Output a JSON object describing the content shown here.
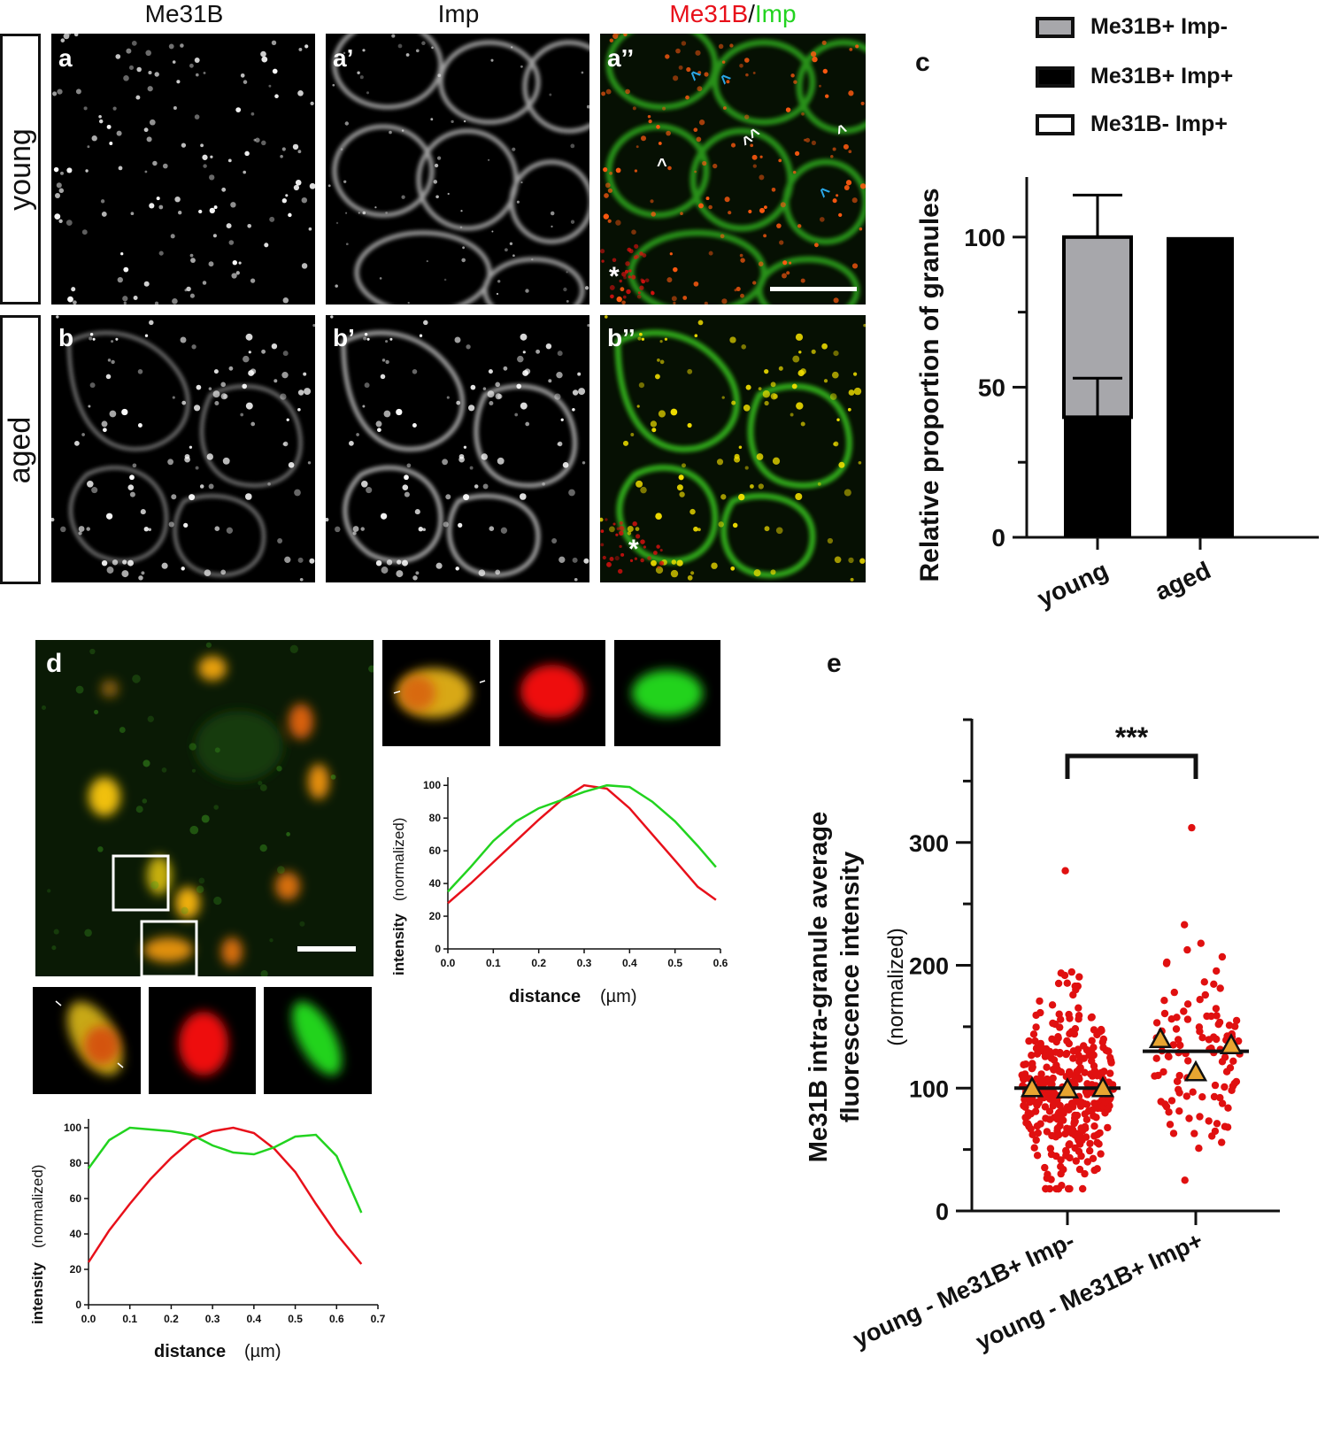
{
  "columns": {
    "me31b": "Me31B",
    "imp": "Imp",
    "merge_red": "Me31B",
    "merge_sep": "/",
    "merge_green": "Imp"
  },
  "rows": {
    "young": "young",
    "aged": "aged"
  },
  "panels": {
    "a": "a",
    "a1": "a’",
    "a2": "a’’",
    "b": "b",
    "b1": "b’",
    "b2": "b’’",
    "c": "c",
    "d": "d",
    "e": "e",
    "asterisk": "*",
    "arrow_glyph": "^"
  },
  "legend": {
    "items": [
      {
        "label": "Me31B+ Imp-",
        "fill": "#a7a7ab"
      },
      {
        "label": "Me31B+ Imp+",
        "fill": "#000000"
      },
      {
        "label": "Me31B- Imp+",
        "fill": "#ffffff"
      }
    ]
  },
  "colors": {
    "red": "#e8101a",
    "green": "#22d31f",
    "yellow": "#e8c400",
    "cyan": "#2aa8e8",
    "gray_bar": "#a7a7ab",
    "dot": "#e01010",
    "triangle": "#e8a531"
  },
  "chart_data": [
    {
      "id": "c",
      "type": "bar",
      "categories": [
        "young",
        "aged"
      ],
      "series": [
        {
          "name": "Me31B+ Imp+",
          "values": [
            40,
            100
          ],
          "error": [
            13,
            0
          ]
        },
        {
          "name": "Me31B+ Imp-",
          "values": [
            60,
            0
          ],
          "error": [
            14,
            0
          ]
        },
        {
          "name": "Me31B- Imp+",
          "values": [
            0,
            0
          ]
        }
      ],
      "ylabel": "Relative proportion of granules",
      "yticks": [
        0,
        50,
        100
      ],
      "ylim": [
        0,
        120
      ]
    },
    {
      "id": "d-top",
      "type": "line",
      "x": [
        0.0,
        0.05,
        0.1,
        0.15,
        0.2,
        0.25,
        0.3,
        0.35,
        0.4,
        0.45,
        0.5,
        0.55,
        0.59
      ],
      "series": [
        {
          "name": "Me31B",
          "color": "#e8101a",
          "values": [
            28,
            40,
            53,
            66,
            79,
            91,
            100,
            98,
            86,
            70,
            54,
            38,
            30
          ]
        },
        {
          "name": "Imp",
          "color": "#22d31f",
          "values": [
            35,
            50,
            66,
            78,
            86,
            91,
            96,
            100,
            99,
            90,
            78,
            63,
            50
          ]
        }
      ],
      "xlabel_main": "distance",
      "xlabel_unit": "(µm)",
      "ylabel_main": "intensity",
      "ylabel_unit": "(normalized)",
      "xticks": [
        "0.0",
        "0.1",
        "0.2",
        "0.3",
        "0.4",
        "0.5",
        "0.6"
      ],
      "yticks": [
        "0",
        "20",
        "40",
        "60",
        "80",
        "100"
      ],
      "xlim": [
        0,
        0.6
      ],
      "ylim": [
        0,
        105
      ]
    },
    {
      "id": "d-bottom",
      "type": "line",
      "x": [
        0.0,
        0.05,
        0.1,
        0.15,
        0.2,
        0.25,
        0.3,
        0.35,
        0.4,
        0.45,
        0.5,
        0.55,
        0.6,
        0.66
      ],
      "series": [
        {
          "name": "Me31B",
          "color": "#e8101a",
          "values": [
            24,
            42,
            57,
            71,
            83,
            93,
            98,
            100,
            97,
            88,
            75,
            57,
            40,
            23
          ]
        },
        {
          "name": "Imp",
          "color": "#22d31f",
          "values": [
            77,
            93,
            100,
            99,
            98,
            96,
            90,
            86,
            85,
            89,
            95,
            96,
            84,
            52
          ]
        }
      ],
      "xlabel_main": "distance",
      "xlabel_unit": "(µm)",
      "ylabel_main": "intensity",
      "ylabel_unit": "(normalized)",
      "xticks": [
        "0.0",
        "0.1",
        "0.2",
        "0.3",
        "0.4",
        "0.5",
        "0.6",
        "0.7"
      ],
      "yticks": [
        "0",
        "20",
        "40",
        "60",
        "80",
        "100"
      ],
      "xlim": [
        0,
        0.7
      ],
      "ylim": [
        0,
        105
      ]
    },
    {
      "id": "e",
      "type": "scatter",
      "categories": [
        "young - Me31B+ Imp-",
        "young - Me31B+ Imp+"
      ],
      "medians": [
        100,
        130
      ],
      "replicate_means": [
        [
          100,
          99,
          100
        ],
        [
          140,
          113,
          135
        ]
      ],
      "ylabel": "Me31B intra-granule average fluorescence intensity",
      "ylabel_unit": "(normalized)",
      "yticks": [
        0,
        100,
        200,
        300
      ],
      "ylim": [
        0,
        400
      ],
      "significance": "***",
      "distributions": [
        {
          "min": 18,
          "max": 277,
          "center": 100
        },
        {
          "min": 25,
          "max": 312,
          "center": 130
        }
      ]
    }
  ]
}
